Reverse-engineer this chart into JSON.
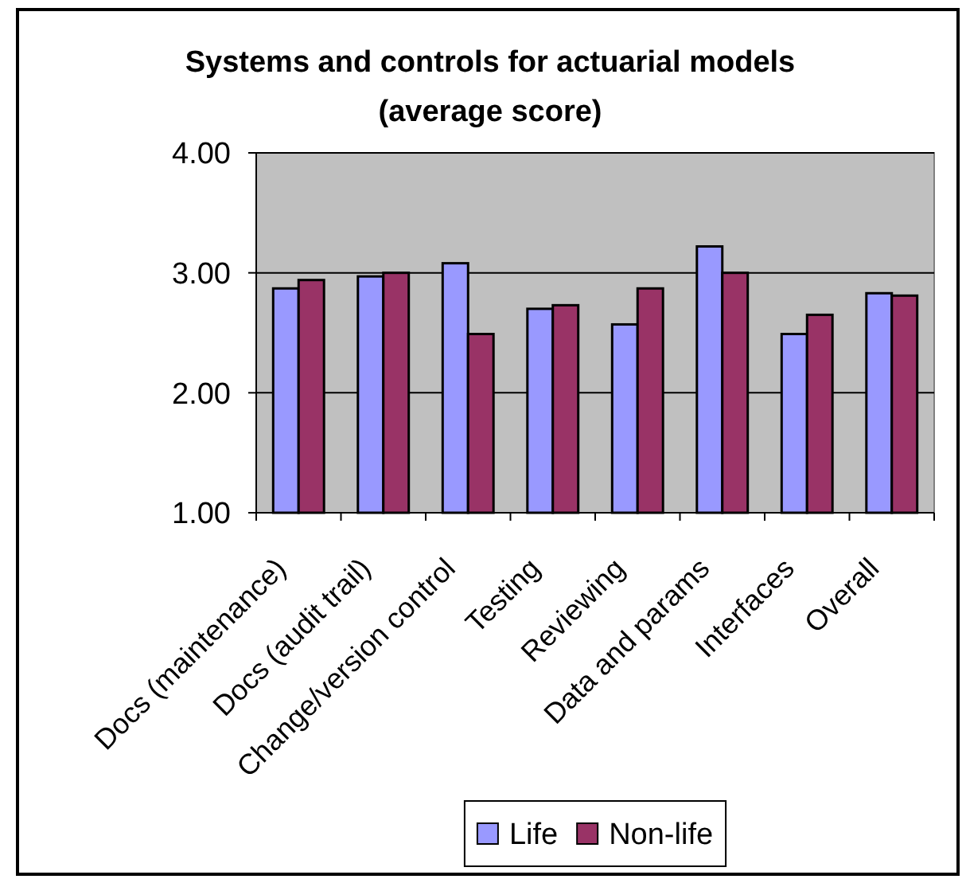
{
  "chart_data": {
    "type": "bar",
    "title": "Systems and controls for actuarial models",
    "subtitle": "(average score)",
    "categories": [
      "Docs (maintenance)",
      "Docs (audit trail)",
      "Change/version control",
      "Testing",
      "Reviewing",
      "Data and params",
      "Interfaces",
      "Overall"
    ],
    "series": [
      {
        "name": "Life",
        "color": "#9999ff",
        "values": [
          2.87,
          2.97,
          3.08,
          2.7,
          2.57,
          3.22,
          2.49,
          2.83
        ]
      },
      {
        "name": "Non-life",
        "color": "#993366",
        "values": [
          2.94,
          3.0,
          2.49,
          2.73,
          2.87,
          3.0,
          2.65,
          2.81
        ]
      }
    ],
    "ylim": [
      1,
      4
    ],
    "yticks": [
      {
        "value": 1,
        "label": "1.00"
      },
      {
        "value": 2,
        "label": "2.00"
      },
      {
        "value": 3,
        "label": "3.00"
      },
      {
        "value": 4,
        "label": "4.00"
      }
    ],
    "grid": "y",
    "legend": "bottom"
  }
}
